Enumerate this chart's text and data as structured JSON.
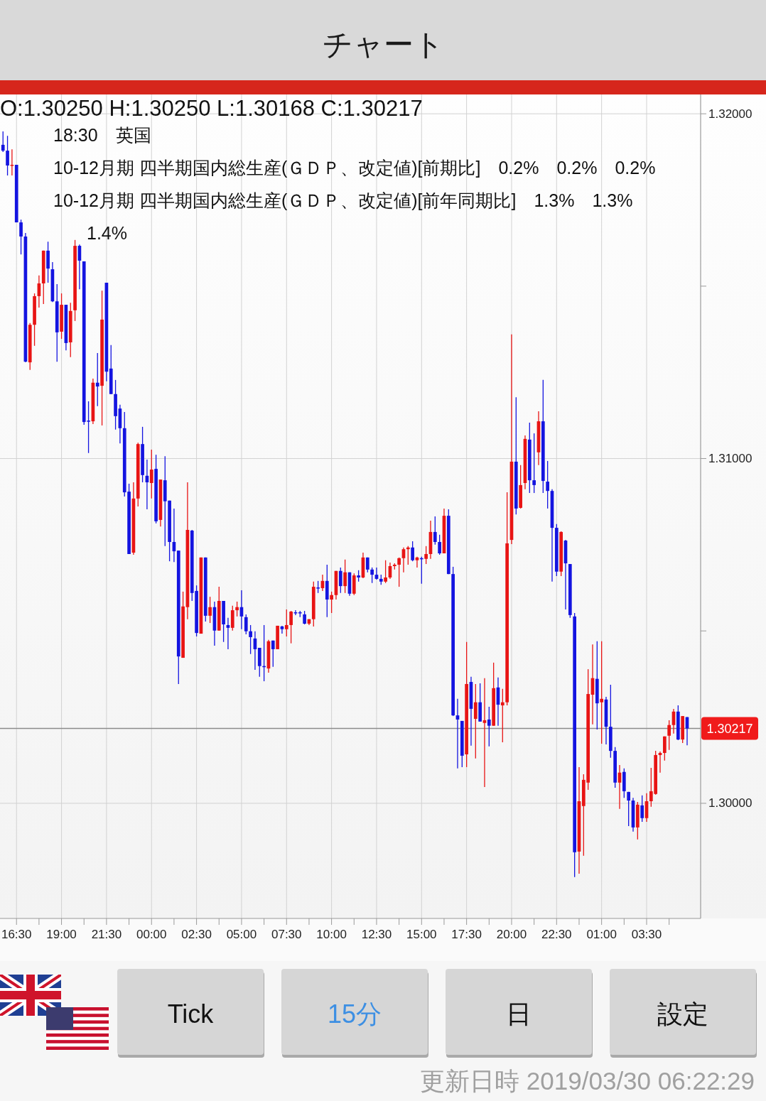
{
  "chart_data": {
    "type": "candlestick",
    "title": "チャート",
    "x": [
      "2019-03-28T15:45",
      "2019-03-28T16:00",
      "2019-03-28T16:15",
      "2019-03-28T16:30",
      "2019-03-28T16:45",
      "2019-03-28T17:00",
      "2019-03-28T17:15",
      "2019-03-28T17:30",
      "2019-03-28T17:45",
      "2019-03-28T18:00",
      "2019-03-28T18:15",
      "2019-03-28T18:30",
      "2019-03-28T18:45",
      "2019-03-28T19:00",
      "2019-03-28T19:15",
      "2019-03-28T19:30",
      "2019-03-28T19:45",
      "2019-03-28T20:00",
      "2019-03-28T20:15",
      "2019-03-28T20:30",
      "2019-03-28T20:45",
      "2019-03-28T21:00",
      "2019-03-28T21:15",
      "2019-03-28T21:30",
      "2019-03-28T21:45",
      "2019-03-28T22:00",
      "2019-03-28T22:15",
      "2019-03-28T22:30",
      "2019-03-28T22:45",
      "2019-03-28T23:00",
      "2019-03-28T23:15",
      "2019-03-28T23:30",
      "2019-03-28T23:45",
      "2019-03-29T00:00",
      "2019-03-29T00:15",
      "2019-03-29T00:30",
      "2019-03-29T00:45",
      "2019-03-29T01:00",
      "2019-03-29T01:15",
      "2019-03-29T01:30",
      "2019-03-29T01:45",
      "2019-03-29T02:00",
      "2019-03-29T02:15",
      "2019-03-29T02:30",
      "2019-03-29T02:45",
      "2019-03-29T03:00",
      "2019-03-29T03:15",
      "2019-03-29T03:30",
      "2019-03-29T03:45",
      "2019-03-29T04:00",
      "2019-03-29T04:15",
      "2019-03-29T04:30",
      "2019-03-29T04:45",
      "2019-03-29T05:00",
      "2019-03-29T05:15",
      "2019-03-29T05:30",
      "2019-03-29T05:45",
      "2019-03-29T06:00",
      "2019-03-29T06:15",
      "2019-03-29T06:30",
      "2019-03-29T06:45",
      "2019-03-29T07:00",
      "2019-03-29T07:15",
      "2019-03-29T07:30",
      "2019-03-29T07:45",
      "2019-03-29T08:00",
      "2019-03-29T08:15",
      "2019-03-29T08:30",
      "2019-03-29T08:45",
      "2019-03-29T09:00",
      "2019-03-29T09:15",
      "2019-03-29T09:30",
      "2019-03-29T09:45",
      "2019-03-29T10:00",
      "2019-03-29T10:15",
      "2019-03-29T10:30",
      "2019-03-29T10:45",
      "2019-03-29T11:00",
      "2019-03-29T11:15",
      "2019-03-29T11:30",
      "2019-03-29T11:45",
      "2019-03-29T12:00",
      "2019-03-29T12:15",
      "2019-03-29T12:30",
      "2019-03-29T12:45",
      "2019-03-29T13:00",
      "2019-03-29T13:15",
      "2019-03-29T13:30",
      "2019-03-29T13:45",
      "2019-03-29T14:00",
      "2019-03-29T14:15",
      "2019-03-29T14:30",
      "2019-03-29T14:45",
      "2019-03-29T15:00",
      "2019-03-29T15:15",
      "2019-03-29T15:30",
      "2019-03-29T15:45",
      "2019-03-29T16:00",
      "2019-03-29T16:15",
      "2019-03-29T16:30",
      "2019-03-29T16:45",
      "2019-03-29T17:00",
      "2019-03-29T17:15",
      "2019-03-29T17:30",
      "2019-03-29T17:45",
      "2019-03-29T18:00",
      "2019-03-29T18:15",
      "2019-03-29T18:30",
      "2019-03-29T18:45",
      "2019-03-29T19:00",
      "2019-03-29T19:15",
      "2019-03-29T19:30",
      "2019-03-29T19:45",
      "2019-03-29T20:00",
      "2019-03-29T20:15",
      "2019-03-29T20:30",
      "2019-03-29T20:45",
      "2019-03-29T21:00",
      "2019-03-29T21:15",
      "2019-03-29T21:30",
      "2019-03-29T21:45",
      "2019-03-29T22:00",
      "2019-03-29T22:15",
      "2019-03-29T22:30",
      "2019-03-29T22:45",
      "2019-03-29T23:00",
      "2019-03-29T23:15",
      "2019-03-29T23:30",
      "2019-03-29T23:45",
      "2019-03-30T00:00",
      "2019-03-30T00:15",
      "2019-03-30T00:30",
      "2019-03-30T00:45",
      "2019-03-30T01:00",
      "2019-03-30T01:15",
      "2019-03-30T01:30",
      "2019-03-30T01:45",
      "2019-03-30T02:00",
      "2019-03-30T02:15",
      "2019-03-30T02:30",
      "2019-03-30T02:45",
      "2019-03-30T03:00",
      "2019-03-30T03:15",
      "2019-03-30T03:30",
      "2019-03-30T03:45",
      "2019-03-30T04:00",
      "2019-03-30T04:15",
      "2019-03-30T04:30",
      "2019-03-30T04:45",
      "2019-03-30T05:00",
      "2019-03-30T05:15",
      "2019-03-30T05:30",
      "2019-03-30T05:45"
    ],
    "ohlc": [
      [
        1.3191,
        1.31949,
        1.31889,
        1.31893
      ],
      [
        1.31893,
        1.31936,
        1.31821,
        1.3185
      ],
      [
        1.3185,
        1.31897,
        1.31821,
        1.31852
      ],
      [
        1.31852,
        1.31852,
        1.31685,
        1.31685
      ],
      [
        1.31685,
        1.31693,
        1.31592,
        1.31644
      ],
      [
        1.31644,
        1.31654,
        1.31279,
        1.31281
      ],
      [
        1.31279,
        1.31393,
        1.31257,
        1.31388
      ],
      [
        1.31388,
        1.31479,
        1.31327,
        1.31471
      ],
      [
        1.31471,
        1.31531,
        1.31438,
        1.31508
      ],
      [
        1.31508,
        1.31603,
        1.31448,
        1.31603
      ],
      [
        1.31603,
        1.31629,
        1.3151,
        1.31551
      ],
      [
        1.31549,
        1.3157,
        1.31454,
        1.31456
      ],
      [
        1.31456,
        1.31506,
        1.31281,
        1.31366
      ],
      [
        1.31368,
        1.31479,
        1.31347,
        1.31446
      ],
      [
        1.31446,
        1.31446,
        1.31314,
        1.31335
      ],
      [
        1.31337,
        1.31452,
        1.31294,
        1.31428
      ],
      [
        1.3143,
        1.31634,
        1.31399,
        1.31617
      ],
      [
        1.31617,
        1.31621,
        1.31491,
        1.31574
      ],
      [
        1.31572,
        1.31572,
        1.31098,
        1.31106
      ],
      [
        1.3111,
        1.31166,
        1.31016,
        1.31108
      ],
      [
        1.31108,
        1.31232,
        1.311,
        1.3122
      ],
      [
        1.3122,
        1.31306,
        1.31152,
        1.31209
      ],
      [
        1.31211,
        1.31487,
        1.31096,
        1.31403
      ],
      [
        1.3151,
        1.3151,
        1.31224,
        1.31252
      ],
      [
        1.31261,
        1.31329,
        1.31187,
        1.31187
      ],
      [
        1.31187,
        1.31228,
        1.31084,
        1.31123
      ],
      [
        1.31145,
        1.31156,
        1.31044,
        1.31088
      ],
      [
        1.31088,
        1.31135,
        1.3089,
        1.30902
      ],
      [
        1.30904,
        1.30927,
        1.30723,
        1.30723
      ],
      [
        1.30727,
        1.30931,
        1.30721,
        1.30884
      ],
      [
        1.30884,
        1.31046,
        1.30861,
        1.31042
      ],
      [
        1.31042,
        1.31092,
        1.30931,
        1.30952
      ],
      [
        1.3095,
        1.30997,
        1.30853,
        1.30931
      ],
      [
        1.30929,
        1.31026,
        1.30884,
        1.30968
      ],
      [
        1.3097,
        1.31011,
        1.30812,
        1.30818
      ],
      [
        1.30822,
        1.30939,
        1.30803,
        1.30939
      ],
      [
        1.30937,
        1.31007,
        1.30746,
        1.30876
      ],
      [
        1.30878,
        1.30878,
        1.30702,
        1.30758
      ],
      [
        1.30758,
        1.30855,
        1.307,
        1.30731
      ],
      [
        1.30733,
        1.30733,
        1.30346,
        1.30426
      ],
      [
        1.30422,
        1.30614,
        1.30422,
        1.30571
      ],
      [
        1.30569,
        1.30931,
        1.30534,
        1.30793
      ],
      [
        1.30791,
        1.30793,
        1.30587,
        1.3061
      ],
      [
        1.30616,
        1.30632,
        1.30484,
        1.30494
      ],
      [
        1.30492,
        1.30713,
        1.30492,
        1.30713
      ],
      [
        1.30713,
        1.30713,
        1.30527,
        1.30544
      ],
      [
        1.30544,
        1.30599,
        1.30523,
        1.30569
      ],
      [
        1.30569,
        1.30585,
        1.30457,
        1.30501
      ],
      [
        1.30501,
        1.30628,
        1.30501,
        1.30587
      ],
      [
        1.30587,
        1.30587,
        1.30468,
        1.30519
      ],
      [
        1.30517,
        1.30538,
        1.30447,
        1.30509
      ],
      [
        1.30509,
        1.30573,
        1.30501,
        1.3056
      ],
      [
        1.3056,
        1.30585,
        1.30542,
        1.30569
      ],
      [
        1.30569,
        1.30618,
        1.30505,
        1.30542
      ],
      [
        1.3054,
        1.30548,
        1.3049,
        1.30499
      ],
      [
        1.30499,
        1.30517,
        1.30433,
        1.30482
      ],
      [
        1.30478,
        1.30499,
        1.30387,
        1.30447
      ],
      [
        1.30451,
        1.30451,
        1.30367,
        1.30398
      ],
      [
        1.30398,
        1.30517,
        1.30354,
        1.30396
      ],
      [
        1.30391,
        1.30474,
        1.30379,
        1.3047
      ],
      [
        1.30472,
        1.30472,
        1.30396,
        1.30447
      ],
      [
        1.30447,
        1.30515,
        1.30447,
        1.30515
      ],
      [
        1.30513,
        1.30515,
        1.30492,
        1.30505
      ],
      [
        1.30505,
        1.30562,
        1.30484,
        1.30517
      ],
      [
        1.30517,
        1.30558,
        1.30464,
        1.30556
      ],
      [
        1.30554,
        1.3056,
        1.30546,
        1.30552
      ],
      [
        1.30554,
        1.30558,
        1.3054,
        1.30552
      ],
      [
        1.30548,
        1.30558,
        1.30519,
        1.30521
      ],
      [
        1.30521,
        1.30534,
        1.30517,
        1.30534
      ],
      [
        1.30534,
        1.30643,
        1.30513,
        1.30628
      ],
      [
        1.30626,
        1.30645,
        1.3061,
        1.30624
      ],
      [
        1.30624,
        1.30663,
        1.30616,
        1.30645
      ],
      [
        1.30645,
        1.30692,
        1.3054,
        1.30591
      ],
      [
        1.30591,
        1.30614,
        1.30552,
        1.30604
      ],
      [
        1.30604,
        1.30674,
        1.30591,
        1.30674
      ],
      [
        1.30674,
        1.30684,
        1.3061,
        1.3063
      ],
      [
        1.3063,
        1.30707,
        1.3061,
        1.3067
      ],
      [
        1.3067,
        1.3067,
        1.30602,
        1.30608
      ],
      [
        1.30608,
        1.30667,
        1.30604,
        1.30661
      ],
      [
        1.30661,
        1.30676,
        1.30643,
        1.30655
      ],
      [
        1.30655,
        1.30727,
        1.30653,
        1.30713
      ],
      [
        1.30713,
        1.30713,
        1.3067,
        1.30678
      ],
      [
        1.30678,
        1.30684,
        1.30639,
        1.30663
      ],
      [
        1.30663,
        1.30684,
        1.30649,
        1.30651
      ],
      [
        1.30651,
        1.30663,
        1.30634,
        1.30643
      ],
      [
        1.30643,
        1.30705,
        1.30639,
        1.30655
      ],
      [
        1.30655,
        1.30698,
        1.30651,
        1.30688
      ],
      [
        1.30688,
        1.30696,
        1.30678,
        1.30692
      ],
      [
        1.30692,
        1.30713,
        1.30628,
        1.30711
      ],
      [
        1.30711,
        1.30742,
        1.3067,
        1.30737
      ],
      [
        1.30737,
        1.30746,
        1.30692,
        1.30742
      ],
      [
        1.30742,
        1.3076,
        1.30702,
        1.30705
      ],
      [
        1.30705,
        1.30715,
        1.30684,
        1.30713
      ],
      [
        1.30711,
        1.30715,
        1.30637,
        1.30709
      ],
      [
        1.30709,
        1.30746,
        1.30694,
        1.30723
      ],
      [
        1.30723,
        1.3082,
        1.30709,
        1.30787
      ],
      [
        1.30787,
        1.30832,
        1.3075,
        1.30758
      ],
      [
        1.30758,
        1.30779,
        1.30721,
        1.30725
      ],
      [
        1.30725,
        1.30855,
        1.30725,
        1.30834
      ],
      [
        1.30834,
        1.30853,
        1.30665,
        1.30665
      ],
      [
        1.30665,
        1.30686,
        1.30253,
        1.30255
      ],
      [
        1.30255,
        1.30303,
        1.30101,
        1.30243
      ],
      [
        1.30239,
        1.30239,
        1.30105,
        1.30138
      ],
      [
        1.30142,
        1.30468,
        1.30105,
        1.30346
      ],
      [
        1.30352,
        1.30367,
        1.30167,
        1.30274
      ],
      [
        1.30245,
        1.30346,
        1.3013,
        1.30293
      ],
      [
        1.30293,
        1.30348,
        1.30237,
        1.30237
      ],
      [
        1.30233,
        1.30363,
        1.30047,
        1.30241
      ],
      [
        1.30243,
        1.3028,
        1.30165,
        1.30225
      ],
      [
        1.30225,
        1.30408,
        1.30225,
        1.30334
      ],
      [
        1.30336,
        1.30365,
        1.30225,
        1.30286
      ],
      [
        1.30284,
        1.30332,
        1.30177,
        1.30293
      ],
      [
        1.30293,
        1.30902,
        1.30284,
        1.30754
      ],
      [
        1.30764,
        1.3136,
        1.30752,
        1.30991
      ],
      [
        1.30991,
        1.31178,
        1.30838,
        1.30855
      ],
      [
        1.30857,
        1.30981,
        1.30855,
        1.30923
      ],
      [
        1.30929,
        1.31067,
        1.30911,
        1.31057
      ],
      [
        1.31055,
        1.31104,
        1.309,
        1.30937
      ],
      [
        1.30937,
        1.31073,
        1.309,
        1.30923
      ],
      [
        1.31018,
        1.31137,
        1.30981,
        1.31108
      ],
      [
        1.31108,
        1.31228,
        1.309,
        1.30935
      ],
      [
        1.30933,
        1.30993,
        1.30855,
        1.30906
      ],
      [
        1.30906,
        1.30911,
        1.30643,
        1.30799
      ],
      [
        1.30799,
        1.3081,
        1.30659,
        1.30672
      ],
      [
        1.30672,
        1.30789,
        1.30659,
        1.30787
      ],
      [
        1.30762,
        1.30764,
        1.30562,
        1.30696
      ],
      [
        1.30694,
        1.30694,
        1.30538,
        1.30546
      ],
      [
        1.30542,
        1.30552,
        1.29786,
        1.29858
      ],
      [
        1.2986,
        1.30105,
        1.29796,
        1.30006
      ],
      [
        1.29992,
        1.30084,
        1.29848,
        1.30068
      ],
      [
        1.3006,
        1.30389,
        1.30039,
        1.30317
      ],
      [
        1.30315,
        1.30461,
        1.30229,
        1.30363
      ],
      [
        1.30361,
        1.3047,
        1.30214,
        1.3029
      ],
      [
        1.30293,
        1.3047,
        1.30173,
        1.30303
      ],
      [
        1.30301,
        1.30309,
        1.30171,
        1.30222
      ],
      [
        1.30222,
        1.30344,
        1.30132,
        1.30152
      ],
      [
        1.30152,
        1.30163,
        1.30045,
        1.3006
      ],
      [
        1.3006,
        1.30111,
        1.29984,
        1.30089
      ],
      [
        1.30091,
        1.30101,
        1.30016,
        1.30035
      ],
      [
        1.30033,
        1.30033,
        1.29934,
        1.30008
      ],
      [
        1.30008,
        1.30016,
        1.29918,
        1.2993
      ],
      [
        1.2993,
        1.30004,
        1.29895,
        1.29996
      ],
      [
        1.29994,
        1.30023,
        1.29946,
        1.29957
      ],
      [
        1.29957,
        1.30029,
        1.29946,
        1.30006
      ],
      [
        1.30006,
        1.30103,
        1.2999,
        1.30035
      ],
      [
        1.30027,
        1.30152,
        1.30025,
        1.3014
      ],
      [
        1.3014,
        1.3015,
        1.30089,
        1.30146
      ],
      [
        1.30146,
        1.30194,
        1.30124,
        1.30194
      ],
      [
        1.30196,
        1.30241,
        1.30155,
        1.30227
      ],
      [
        1.30227,
        1.30274,
        1.30202,
        1.30266
      ],
      [
        1.30266,
        1.30284,
        1.30183,
        1.30185
      ],
      [
        1.30185,
        1.30253,
        1.30175,
        1.30253
      ],
      [
        1.3025,
        1.3025,
        1.30168,
        1.30217
      ]
    ],
    "colors": [
      "#1414e0",
      "#1414e0",
      "#e81414",
      "#1414e0",
      "#1414e0",
      "#1414e0",
      "#e81414",
      "#e81414",
      "#e81414",
      "#e81414",
      "#1414e0",
      "#1414e0",
      "#1414e0",
      "#e81414",
      "#1414e0",
      "#e81414",
      "#e81414",
      "#1414e0",
      "#1414e0",
      "#1414e0",
      "#e81414",
      "#1414e0",
      "#e81414",
      "#1414e0",
      "#1414e0",
      "#1414e0",
      "#1414e0",
      "#1414e0",
      "#1414e0",
      "#e81414",
      "#e81414",
      "#1414e0",
      "#1414e0",
      "#e81414",
      "#1414e0",
      "#e81414",
      "#1414e0",
      "#1414e0",
      "#1414e0",
      "#1414e0",
      "#e81414",
      "#e81414",
      "#1414e0",
      "#1414e0",
      "#e81414",
      "#1414e0",
      "#e81414",
      "#1414e0",
      "#e81414",
      "#1414e0",
      "#1414e0",
      "#e81414",
      "#e81414",
      "#1414e0",
      "#1414e0",
      "#1414e0",
      "#1414e0",
      "#1414e0",
      "#1414e0",
      "#e81414",
      "#1414e0",
      "#e81414",
      "#1414e0",
      "#e81414",
      "#e81414",
      "#1414e0",
      "#1414e0",
      "#1414e0",
      "#e81414",
      "#e81414",
      "#1414e0",
      "#e81414",
      "#1414e0",
      "#e81414",
      "#e81414",
      "#1414e0",
      "#e81414",
      "#1414e0",
      "#e81414",
      "#1414e0",
      "#e81414",
      "#1414e0",
      "#1414e0",
      "#1414e0",
      "#1414e0",
      "#e81414",
      "#e81414",
      "#e81414",
      "#e81414",
      "#e81414",
      "#e81414",
      "#1414e0",
      "#e81414",
      "#1414e0",
      "#e81414",
      "#e81414",
      "#1414e0",
      "#1414e0",
      "#e81414",
      "#1414e0",
      "#1414e0",
      "#1414e0",
      "#1414e0",
      "#e81414",
      "#1414e0",
      "#e81414",
      "#1414e0",
      "#e81414",
      "#1414e0",
      "#e81414",
      "#1414e0",
      "#e81414",
      "#e81414",
      "#e81414",
      "#1414e0",
      "#e81414",
      "#e81414",
      "#1414e0",
      "#1414e0",
      "#e81414",
      "#1414e0",
      "#1414e0",
      "#1414e0",
      "#1414e0",
      "#e81414",
      "#1414e0",
      "#1414e0",
      "#1414e0",
      "#e81414",
      "#e81414",
      "#e81414",
      "#e81414",
      "#1414e0",
      "#e81414",
      "#1414e0",
      "#1414e0",
      "#1414e0",
      "#e81414",
      "#1414e0",
      "#1414e0",
      "#1414e0",
      "#e81414",
      "#1414e0",
      "#e81414",
      "#e81414",
      "#e81414",
      "#e81414",
      "#e81414",
      "#e81414",
      "#e81414",
      "#1414e0",
      "#e81414",
      "#1414e0"
    ],
    "xlim": [
      "2019-03-28T15:35",
      "2019-03-30T06:30"
    ],
    "xticks": [
      {
        "value": "2019-03-28T16:30",
        "label": "16:30"
      },
      {
        "value": "2019-03-28T17:45",
        "label": null
      },
      {
        "value": "2019-03-28T19:00",
        "label": "19:00"
      },
      {
        "value": "2019-03-28T20:15",
        "label": null
      },
      {
        "value": "2019-03-28T21:30",
        "label": "21:30"
      },
      {
        "value": "2019-03-28T22:45",
        "label": null
      },
      {
        "value": "2019-03-29T00:00",
        "label": "00:00"
      },
      {
        "value": "2019-03-29T01:15",
        "label": null
      },
      {
        "value": "2019-03-29T02:30",
        "label": "02:30"
      },
      {
        "value": "2019-03-29T03:45",
        "label": null
      },
      {
        "value": "2019-03-29T05:00",
        "label": "05:00"
      },
      {
        "value": "2019-03-29T06:15",
        "label": null
      },
      {
        "value": "2019-03-29T07:30",
        "label": "07:30"
      },
      {
        "value": "2019-03-29T08:45",
        "label": null
      },
      {
        "value": "2019-03-29T10:00",
        "label": "10:00"
      },
      {
        "value": "2019-03-29T11:15",
        "label": null
      },
      {
        "value": "2019-03-29T12:30",
        "label": "12:30"
      },
      {
        "value": "2019-03-29T13:45",
        "label": null
      },
      {
        "value": "2019-03-29T15:00",
        "label": "15:00"
      },
      {
        "value": "2019-03-29T16:15",
        "label": null
      },
      {
        "value": "2019-03-29T17:30",
        "label": "17:30"
      },
      {
        "value": "2019-03-29T18:45",
        "label": null
      },
      {
        "value": "2019-03-29T20:00",
        "label": "20:00"
      },
      {
        "value": "2019-03-29T21:15",
        "label": null
      },
      {
        "value": "2019-03-29T22:30",
        "label": "22:30"
      },
      {
        "value": "2019-03-29T23:45",
        "label": null
      },
      {
        "value": "2019-03-30T01:00",
        "label": "01:00"
      },
      {
        "value": "2019-03-30T02:15",
        "label": null
      },
      {
        "value": "2019-03-30T03:30",
        "label": "03:30"
      },
      {
        "value": "2019-03-30T04:45",
        "label": null
      }
    ],
    "ylim": [
      1.29666,
      1.32056
    ],
    "yticks": [
      {
        "value": 1.3,
        "label": "1.30000"
      },
      {
        "value": 1.305,
        "label": null
      },
      {
        "value": 1.31,
        "label": "1.31000"
      },
      {
        "value": 1.315,
        "label": null
      },
      {
        "value": 1.32,
        "label": "1.32000"
      }
    ],
    "grid": true,
    "ref_lines": [
      {
        "axis": "y",
        "value": 1.30217,
        "label": "1.30217",
        "color": "#8c8c8c"
      }
    ],
    "annotations": [
      "O:1.30250 H:1.30250 L:1.30168 C:1.30217",
      "18:30　英国",
      "10-12月期 四半期国内総生産(ＧＤＰ、改定値)[前期比]　0.2%　0.2%　0.2%",
      "10-12月期 四半期国内総生産(ＧＤＰ、改定値)[前年同期比]　1.3%　1.3%　1.4%",
      "Tick",
      "15分",
      "日",
      "設定",
      "更新日時 2019/03/30 06:22:29"
    ]
  }
}
